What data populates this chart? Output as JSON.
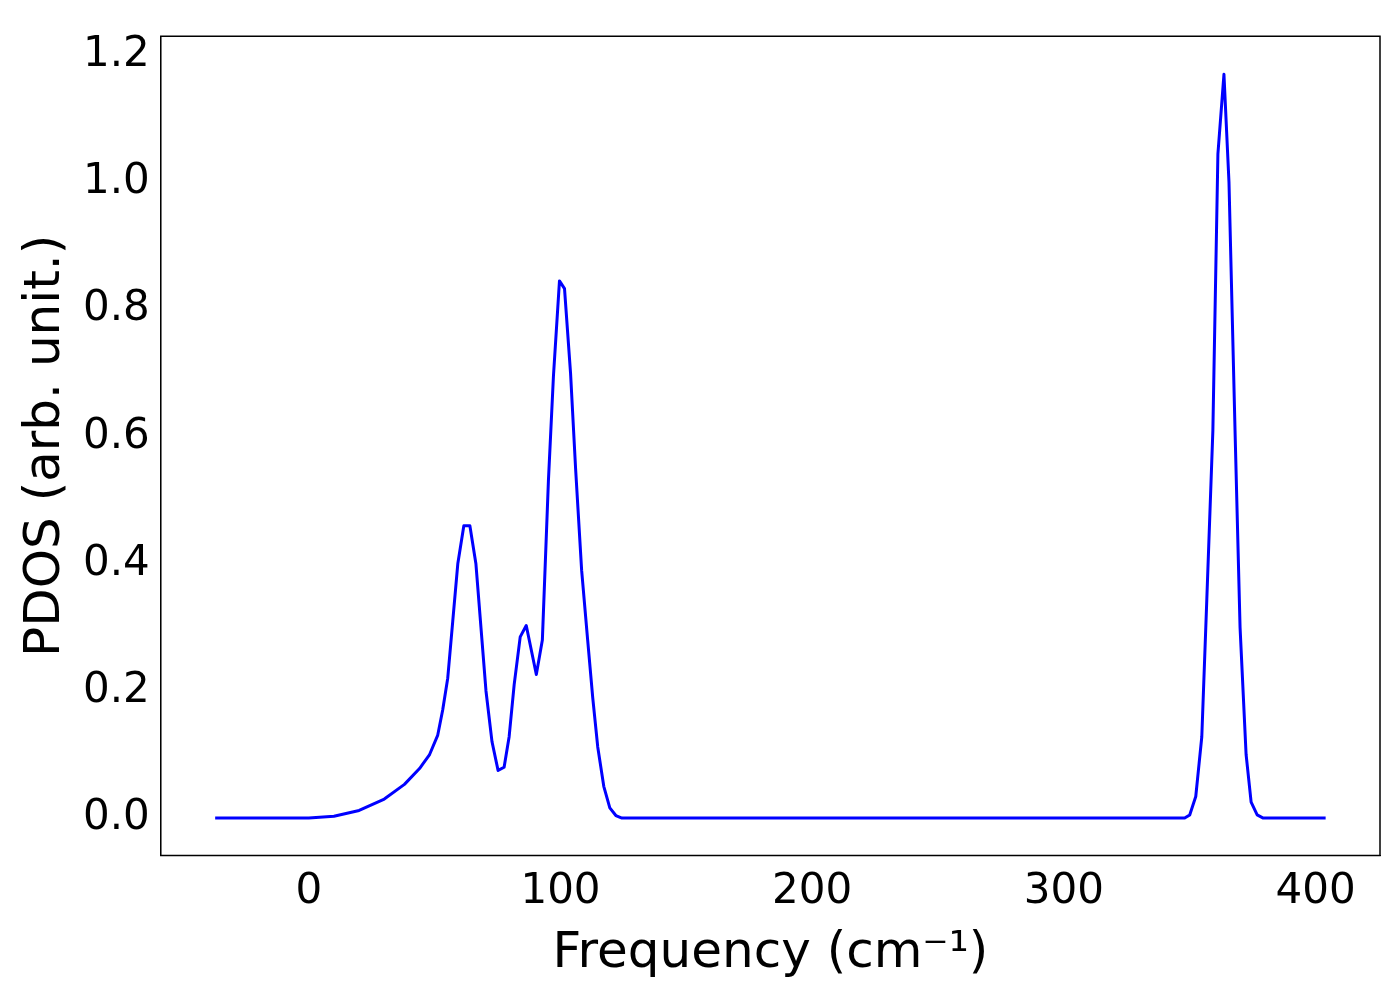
{
  "chart_data": {
    "type": "line",
    "xlabel": "Frequency (cm⁻¹)",
    "ylabel": "PDOS (arb. unit.)",
    "xlim": [
      -58.8,
      425.6
    ],
    "xticks": [
      0,
      100,
      200,
      300,
      400
    ],
    "ylim": [
      -0.059,
      1.23
    ],
    "yticks": [
      {
        "value": 0,
        "label": "0.0"
      },
      0.2,
      0.4,
      0.6,
      0.8,
      {
        "value": 1,
        "label": "1.0"
      },
      1.2
    ],
    "grid": false,
    "legend": false,
    "marker": "none",
    "line_style": "solid",
    "series": [
      {
        "color": "#0000ff",
        "x": [
          -37.2,
          0,
          10,
          20,
          30,
          38,
          44,
          48,
          51.2,
          53.2,
          55.2,
          57.2,
          59.2,
          61.6,
          64,
          66.4,
          68.4,
          70.4,
          72.8,
          75.2,
          77.6,
          79.6,
          81.6,
          84,
          86.4,
          90.4,
          92.8,
          95.2,
          97.2,
          99.6,
          101.6,
          104,
          106,
          108.4,
          110.8,
          112.8,
          114.8,
          117.2,
          119.6,
          122,
          124.4,
          348,
          350,
          352.4,
          354.8,
          356.8,
          359.2,
          361.2,
          363.6,
          365.6,
          368,
          370,
          372.4,
          374.4,
          376.8,
          379.2,
          404
        ],
        "values": [
          0,
          0,
          0.003,
          0.012,
          0.03,
          0.053,
          0.078,
          0.1,
          0.13,
          0.17,
          0.22,
          0.31,
          0.4,
          0.46,
          0.46,
          0.4,
          0.3,
          0.2,
          0.12,
          0.075,
          0.08,
          0.128,
          0.21,
          0.285,
          0.303,
          0.226,
          0.28,
          0.53,
          0.695,
          0.845,
          0.833,
          0.7,
          0.55,
          0.39,
          0.28,
          0.19,
          0.112,
          0.05,
          0.016,
          0.004,
          0,
          0,
          0.005,
          0.034,
          0.128,
          0.345,
          0.61,
          1.045,
          1.17,
          1.0,
          0.61,
          0.3,
          0.1,
          0.025,
          0.005,
          0,
          0
        ]
      }
    ]
  }
}
